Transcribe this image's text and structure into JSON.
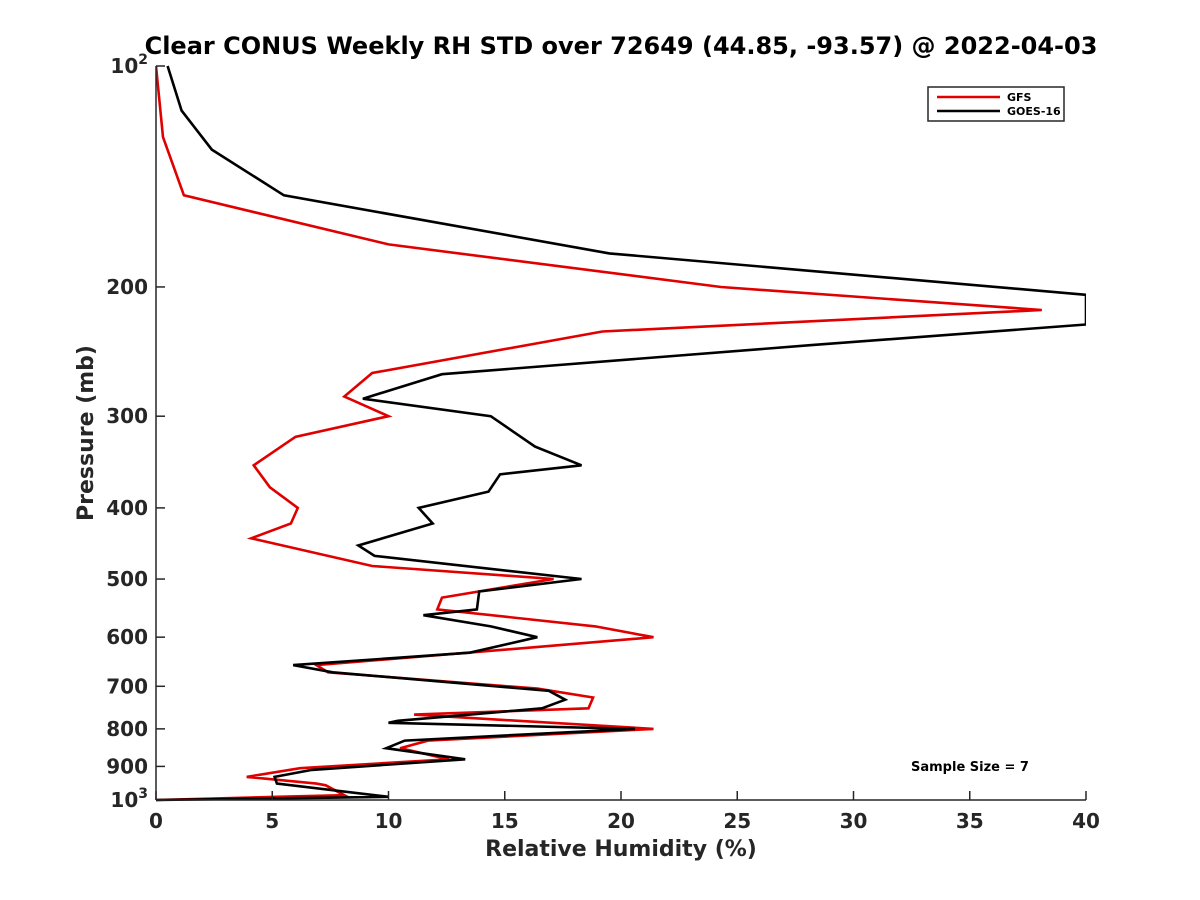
{
  "chart_data": {
    "type": "line",
    "title": "Clear CONUS Weekly RH STD over 72649 (44.85, -93.57) @ 2022-04-03",
    "xlabel": "Relative Humidity (%)",
    "ylabel": "Pressure (mb)",
    "xlim": [
      0,
      40
    ],
    "ylim": [
      100,
      1000
    ],
    "y_scale": "log",
    "y_reversed": true,
    "grid": false,
    "legend_position": "top-right",
    "x_ticks": [
      0,
      5,
      10,
      15,
      20,
      25,
      30,
      35,
      40
    ],
    "x_tick_labels": [
      "0",
      "5",
      "10",
      "15",
      "20",
      "25",
      "30",
      "35",
      "40"
    ],
    "y_ticks": [
      100,
      200,
      300,
      400,
      500,
      600,
      700,
      800,
      900,
      1000
    ],
    "y_tick_labels": [
      {
        "base": "10",
        "exp": "2"
      },
      {
        "base": "200",
        "exp": ""
      },
      {
        "base": "300",
        "exp": ""
      },
      {
        "base": "400",
        "exp": ""
      },
      {
        "base": "500",
        "exp": ""
      },
      {
        "base": "600",
        "exp": ""
      },
      {
        "base": "700",
        "exp": ""
      },
      {
        "base": "800",
        "exp": ""
      },
      {
        "base": "900",
        "exp": ""
      },
      {
        "base": "10",
        "exp": "3"
      }
    ],
    "series": [
      {
        "name": "GFS",
        "color": "#e00000",
        "points": [
          [
            0.0,
            100
          ],
          [
            0.3,
            125
          ],
          [
            1.2,
            150
          ],
          [
            10.0,
            175
          ],
          [
            24.3,
            200
          ],
          [
            38.1,
            215
          ],
          [
            19.2,
            230
          ],
          [
            9.3,
            262
          ],
          [
            8.1,
            282
          ],
          [
            10.0,
            300
          ],
          [
            6.0,
            320
          ],
          [
            4.2,
            350
          ],
          [
            4.9,
            375
          ],
          [
            6.1,
            400
          ],
          [
            5.8,
            420
          ],
          [
            4.1,
            440
          ],
          [
            9.3,
            480
          ],
          [
            17.1,
            500
          ],
          [
            12.3,
            530
          ],
          [
            12.1,
            550
          ],
          [
            18.9,
            580
          ],
          [
            21.4,
            600
          ],
          [
            16.1,
            620
          ],
          [
            6.9,
            655
          ],
          [
            7.4,
            670
          ],
          [
            16.4,
            705
          ],
          [
            18.8,
            725
          ],
          [
            18.6,
            750
          ],
          [
            11.1,
            765
          ],
          [
            21.4,
            800
          ],
          [
            11.7,
            830
          ],
          [
            10.5,
            850
          ],
          [
            12.6,
            880
          ],
          [
            6.2,
            905
          ],
          [
            3.9,
            930
          ],
          [
            6.9,
            950
          ],
          [
            7.3,
            955
          ],
          [
            8.1,
            985
          ],
          [
            5.2,
            990
          ],
          [
            0.0,
            1000
          ]
        ]
      },
      {
        "name": "GOES-16",
        "color": "#000000",
        "points": [
          [
            0.5,
            100
          ],
          [
            1.1,
            115
          ],
          [
            2.4,
            130
          ],
          [
            5.5,
            150
          ],
          [
            19.5,
            180
          ],
          [
            40.0,
            205
          ],
          [
            40.0,
            225
          ],
          [
            28.2,
            240
          ],
          [
            12.3,
            263
          ],
          [
            8.9,
            284
          ],
          [
            14.4,
            300
          ],
          [
            16.3,
            330
          ],
          [
            18.3,
            350
          ],
          [
            14.8,
            360
          ],
          [
            14.3,
            380
          ],
          [
            11.3,
            400
          ],
          [
            11.9,
            420
          ],
          [
            8.7,
            450
          ],
          [
            9.4,
            465
          ],
          [
            18.3,
            500
          ],
          [
            13.9,
            520
          ],
          [
            13.8,
            550
          ],
          [
            11.5,
            560
          ],
          [
            14.4,
            580
          ],
          [
            16.4,
            600
          ],
          [
            13.5,
            630
          ],
          [
            5.9,
            655
          ],
          [
            7.6,
            670
          ],
          [
            16.9,
            710
          ],
          [
            17.6,
            730
          ],
          [
            16.6,
            750
          ],
          [
            10.4,
            780
          ],
          [
            10.0,
            785
          ],
          [
            20.6,
            800
          ],
          [
            10.7,
            830
          ],
          [
            9.9,
            850
          ],
          [
            13.3,
            880
          ],
          [
            6.7,
            910
          ],
          [
            5.1,
            930
          ],
          [
            5.2,
            950
          ],
          [
            10.0,
            990
          ],
          [
            0.0,
            1000
          ]
        ]
      }
    ],
    "annotation": "Sample Size = 7"
  }
}
